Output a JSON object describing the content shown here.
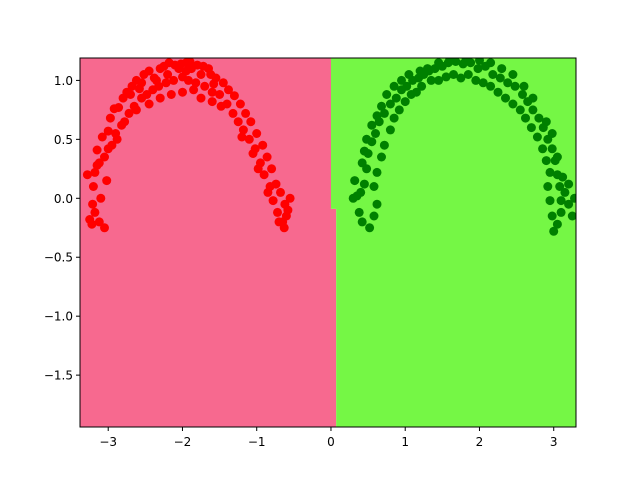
{
  "chart_data": {
    "type": "scatter",
    "title": "",
    "xlabel": "",
    "ylabel": "",
    "xlim": [
      -3.38,
      3.3
    ],
    "ylim": [
      -1.94,
      1.19
    ],
    "grid": false,
    "legend": "none",
    "x_ticks": [
      {
        "value": -3,
        "label": "−3"
      },
      {
        "value": -2,
        "label": "−2"
      },
      {
        "value": -1,
        "label": "−1"
      },
      {
        "value": 0,
        "label": "0"
      },
      {
        "value": 1,
        "label": "1"
      },
      {
        "value": 2,
        "label": "2"
      },
      {
        "value": 3,
        "label": "3"
      }
    ],
    "y_ticks": [
      {
        "value": -1.5,
        "label": "−1.5"
      },
      {
        "value": -1.0,
        "label": "−1.0"
      },
      {
        "value": -0.5,
        "label": "−0.5"
      },
      {
        "value": 0.0,
        "label": "0.0"
      },
      {
        "value": 0.5,
        "label": "0.5"
      },
      {
        "value": 1.0,
        "label": "1.0"
      }
    ],
    "decision_regions": [
      {
        "color": "#f7698f",
        "polygon": [
          [
            -3.38,
            -1.94
          ],
          [
            0.07,
            -1.94
          ],
          [
            0.07,
            -0.09
          ],
          [
            0.0,
            -0.09
          ],
          [
            0.0,
            1.19
          ],
          [
            -3.38,
            1.19
          ]
        ]
      },
      {
        "color": "#75f745",
        "polygon": [
          [
            0.07,
            -1.94
          ],
          [
            3.3,
            -1.94
          ],
          [
            3.3,
            1.19
          ],
          [
            0.0,
            1.19
          ],
          [
            0.0,
            -0.09
          ],
          [
            0.07,
            -0.09
          ]
        ]
      }
    ],
    "series": [
      {
        "color": "#ff0000",
        "points": [
          [
            -3.22,
            -0.22
          ],
          [
            -3.21,
            -0.05
          ],
          [
            -3.2,
            0.1
          ],
          [
            -3.18,
            0.22
          ],
          [
            -3.12,
            0.3
          ],
          [
            -3.15,
            0.41
          ],
          [
            -3.08,
            0.52
          ],
          [
            -3.0,
            0.57
          ],
          [
            -2.97,
            0.68
          ],
          [
            -2.92,
            0.76
          ],
          [
            -2.86,
            0.77
          ],
          [
            -2.8,
            0.85
          ],
          [
            -2.75,
            0.9
          ],
          [
            -2.68,
            0.95
          ],
          [
            -2.62,
            1.0
          ],
          [
            -2.58,
            0.93
          ],
          [
            -2.52,
            1.05
          ],
          [
            -2.45,
            1.08
          ],
          [
            -2.38,
            1.02
          ],
          [
            -2.3,
            1.1
          ],
          [
            -2.25,
            1.12
          ],
          [
            -2.18,
            1.15
          ],
          [
            -2.1,
            1.13
          ],
          [
            -2.02,
            1.14
          ],
          [
            -1.95,
            1.15
          ],
          [
            -1.88,
            1.1
          ],
          [
            -1.8,
            1.13
          ],
          [
            -1.72,
            1.12
          ],
          [
            -1.62,
            1.05
          ],
          [
            -1.55,
            1.02
          ],
          [
            -1.45,
            0.98
          ],
          [
            -1.38,
            0.92
          ],
          [
            -1.3,
            0.87
          ],
          [
            -1.22,
            0.8
          ],
          [
            -1.15,
            0.72
          ],
          [
            -1.08,
            0.65
          ],
          [
            -1.0,
            0.55
          ],
          [
            -0.92,
            0.45
          ],
          [
            -0.86,
            0.35
          ],
          [
            -0.8,
            0.25
          ],
          [
            -0.74,
            0.12
          ],
          [
            -0.68,
            0.05
          ],
          [
            -0.62,
            -0.05
          ],
          [
            -0.6,
            -0.15
          ],
          [
            -0.63,
            -0.25
          ],
          [
            -3.25,
            -0.18
          ],
          [
            -3.18,
            -0.12
          ],
          [
            -3.12,
            -0.2
          ],
          [
            -3.05,
            -0.25
          ],
          [
            -3.1,
            0.0
          ],
          [
            -3.02,
            0.15
          ],
          [
            -3.05,
            0.35
          ],
          [
            -2.95,
            0.45
          ],
          [
            -2.9,
            0.55
          ],
          [
            -2.82,
            0.62
          ],
          [
            -2.72,
            0.72
          ],
          [
            -2.65,
            0.78
          ],
          [
            -2.55,
            0.85
          ],
          [
            -2.48,
            0.88
          ],
          [
            -2.4,
            0.92
          ],
          [
            -2.32,
            0.95
          ],
          [
            -2.22,
            0.98
          ],
          [
            -2.12,
            1.0
          ],
          [
            -2.0,
            1.03
          ],
          [
            -1.92,
            1.0
          ],
          [
            -1.82,
            0.98
          ],
          [
            -1.7,
            0.95
          ],
          [
            -1.6,
            0.9
          ],
          [
            -1.5,
            0.88
          ],
          [
            -1.4,
            0.8
          ],
          [
            -1.32,
            0.72
          ],
          [
            -1.25,
            0.65
          ],
          [
            -1.18,
            0.58
          ],
          [
            -1.1,
            0.5
          ],
          [
            -1.02,
            0.42
          ],
          [
            -0.95,
            0.3
          ],
          [
            -0.9,
            0.2
          ],
          [
            -0.82,
            0.1
          ],
          [
            -0.78,
            -0.02
          ],
          [
            -0.72,
            -0.12
          ],
          [
            -0.7,
            -0.2
          ],
          [
            -2.0,
            0.9
          ],
          [
            -1.85,
            0.92
          ],
          [
            -1.75,
            0.85
          ],
          [
            -2.15,
            0.88
          ],
          [
            -2.3,
            0.85
          ],
          [
            -2.45,
            0.8
          ],
          [
            -1.65,
            1.1
          ],
          [
            -1.75,
            1.05
          ],
          [
            -1.95,
            1.08
          ],
          [
            -2.05,
            1.1
          ],
          [
            -2.2,
            1.05
          ],
          [
            -2.35,
            1.0
          ],
          [
            -2.62,
            0.75
          ],
          [
            -2.78,
            0.65
          ],
          [
            -2.88,
            0.5
          ],
          [
            -1.2,
            0.52
          ],
          [
            -1.05,
            0.38
          ],
          [
            -0.98,
            0.25
          ],
          [
            -0.85,
            0.05
          ],
          [
            -0.65,
            -0.2
          ],
          [
            -0.58,
            -0.1
          ],
          [
            -0.55,
            0.0
          ],
          [
            -1.48,
            0.78
          ],
          [
            -1.6,
            0.82
          ],
          [
            -1.9,
            1.16
          ],
          [
            -1.58,
            0.97
          ],
          [
            -2.55,
            0.98
          ],
          [
            -2.7,
            0.88
          ],
          [
            -3.0,
            0.42
          ],
          [
            -3.15,
            0.28
          ],
          [
            -3.28,
            0.2
          ]
        ]
      },
      {
        "color": "#008000",
        "points": [
          [
            0.35,
            0.02
          ],
          [
            0.38,
            -0.12
          ],
          [
            0.42,
            -0.2
          ],
          [
            0.45,
            0.12
          ],
          [
            0.48,
            0.25
          ],
          [
            0.5,
            0.38
          ],
          [
            0.55,
            0.48
          ],
          [
            0.6,
            0.55
          ],
          [
            0.65,
            0.65
          ],
          [
            0.72,
            0.72
          ],
          [
            0.8,
            0.8
          ],
          [
            0.88,
            0.85
          ],
          [
            0.95,
            0.92
          ],
          [
            1.02,
            0.95
          ],
          [
            1.1,
            1.0
          ],
          [
            1.18,
            1.02
          ],
          [
            1.25,
            1.05
          ],
          [
            1.32,
            1.08
          ],
          [
            1.4,
            1.1
          ],
          [
            1.5,
            1.12
          ],
          [
            1.58,
            1.15
          ],
          [
            1.68,
            1.16
          ],
          [
            1.78,
            1.14
          ],
          [
            1.88,
            1.15
          ],
          [
            1.98,
            1.1
          ],
          [
            2.08,
            1.12
          ],
          [
            2.18,
            1.05
          ],
          [
            2.28,
            1.02
          ],
          [
            2.38,
            0.98
          ],
          [
            2.48,
            0.95
          ],
          [
            2.58,
            0.88
          ],
          [
            2.65,
            0.82
          ],
          [
            2.72,
            0.75
          ],
          [
            2.8,
            0.68
          ],
          [
            2.86,
            0.6
          ],
          [
            2.92,
            0.5
          ],
          [
            2.98,
            0.42
          ],
          [
            3.02,
            0.32
          ],
          [
            3.05,
            0.2
          ],
          [
            3.08,
            0.1
          ],
          [
            3.1,
            -0.02
          ],
          [
            3.1,
            -0.12
          ],
          [
            3.05,
            -0.22
          ],
          [
            3.0,
            -0.28
          ],
          [
            0.52,
            -0.25
          ],
          [
            0.58,
            -0.15
          ],
          [
            0.62,
            -0.05
          ],
          [
            0.58,
            0.1
          ],
          [
            0.62,
            0.22
          ],
          [
            0.68,
            0.35
          ],
          [
            0.72,
            0.45
          ],
          [
            0.8,
            0.58
          ],
          [
            0.85,
            0.68
          ],
          [
            0.92,
            0.75
          ],
          [
            1.0,
            0.82
          ],
          [
            1.08,
            0.88
          ],
          [
            1.15,
            0.9
          ],
          [
            1.22,
            0.95
          ],
          [
            1.35,
            1.0
          ],
          [
            1.45,
            1.0
          ],
          [
            1.55,
            1.03
          ],
          [
            1.65,
            1.05
          ],
          [
            1.75,
            1.02
          ],
          [
            1.85,
            1.05
          ],
          [
            1.95,
            1.0
          ],
          [
            2.05,
            0.98
          ],
          [
            2.15,
            0.95
          ],
          [
            2.25,
            0.9
          ],
          [
            2.35,
            0.85
          ],
          [
            2.45,
            0.8
          ],
          [
            2.55,
            0.75
          ],
          [
            2.62,
            0.68
          ],
          [
            2.7,
            0.6
          ],
          [
            2.78,
            0.52
          ],
          [
            2.85,
            0.42
          ],
          [
            2.9,
            0.32
          ],
          [
            2.95,
            0.22
          ],
          [
            2.92,
            0.1
          ],
          [
            2.95,
            -0.02
          ],
          [
            2.98,
            -0.15
          ],
          [
            3.15,
            0.05
          ],
          [
            3.2,
            -0.05
          ],
          [
            3.25,
            -0.15
          ],
          [
            3.28,
            0.0
          ],
          [
            3.2,
            0.12
          ],
          [
            3.12,
            0.18
          ],
          [
            3.05,
            0.35
          ],
          [
            2.98,
            0.55
          ],
          [
            2.9,
            0.65
          ],
          [
            2.72,
            0.85
          ],
          [
            2.6,
            0.95
          ],
          [
            2.45,
            1.05
          ],
          [
            2.3,
            1.1
          ],
          [
            2.15,
            1.15
          ],
          [
            2.0,
            1.17
          ],
          [
            1.82,
            1.18
          ],
          [
            1.6,
            1.18
          ],
          [
            1.45,
            1.15
          ],
          [
            1.3,
            1.1
          ],
          [
            1.2,
            1.08
          ],
          [
            1.05,
            1.05
          ],
          [
            0.95,
            1.0
          ],
          [
            0.85,
            0.95
          ],
          [
            0.75,
            0.88
          ],
          [
            0.68,
            0.78
          ],
          [
            0.62,
            0.7
          ],
          [
            0.55,
            0.62
          ],
          [
            0.48,
            0.5
          ],
          [
            0.45,
            0.4
          ],
          [
            0.42,
            0.3
          ],
          [
            0.4,
            0.05
          ],
          [
            0.32,
            0.15
          ],
          [
            0.3,
            0.0
          ]
        ]
      }
    ]
  }
}
